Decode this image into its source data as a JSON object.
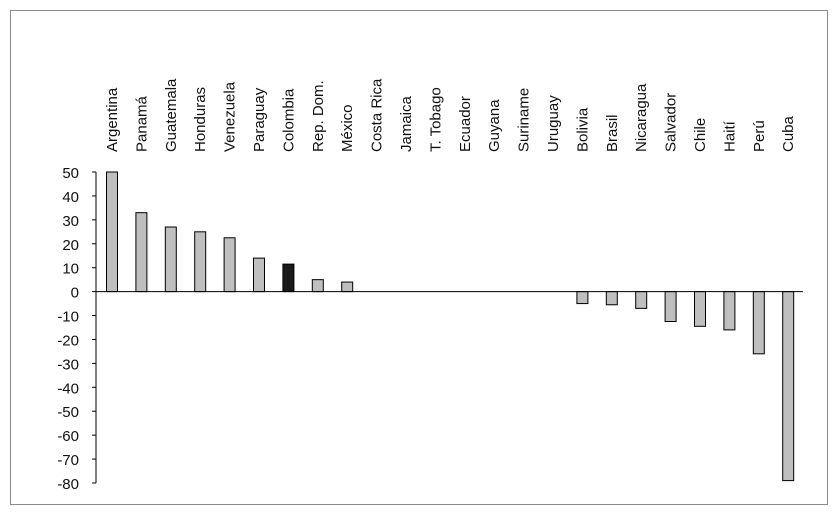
{
  "chart_data": {
    "type": "bar",
    "title": "",
    "xlabel": "",
    "ylabel": "",
    "ylim": [
      -80,
      50
    ],
    "yticks": [
      50,
      40,
      30,
      20,
      10,
      0,
      -10,
      -20,
      -30,
      -40,
      -50,
      -60,
      -70,
      -80
    ],
    "ytick_labels": [
      "50",
      "40",
      "30",
      "20",
      "10",
      "0",
      "-10",
      "-20",
      "-30",
      "-40",
      "-50",
      "-60",
      "-70",
      "-80"
    ],
    "grid": false,
    "legend": "none",
    "categories": [
      "Argentina",
      "Panamá",
      "Guatemala",
      "Honduras",
      "Venezuela",
      "Paraguay",
      "Colombia",
      "Rep. Dom.",
      "México",
      "Costa Rica",
      "Jamaica",
      "T. Tobago",
      "Ecuador",
      "Guyana",
      "Suriname",
      "Uruguay",
      "Bolivia",
      "Brasil",
      "Nicaragua",
      "Salvador",
      "Chile",
      "Haití",
      "Perú",
      "Cuba"
    ],
    "values": [
      50,
      33,
      27,
      25,
      22.5,
      14,
      11.5,
      5,
      4,
      0,
      0,
      0,
      0,
      0,
      0,
      0,
      -5,
      -5.5,
      -7,
      -12.5,
      -14.5,
      -16,
      -26,
      -79
    ],
    "highlight_category": "Colombia",
    "colors": {
      "bar": "#bfbfbf",
      "highlight": "#1a1a1a",
      "outline": "#000000"
    }
  }
}
